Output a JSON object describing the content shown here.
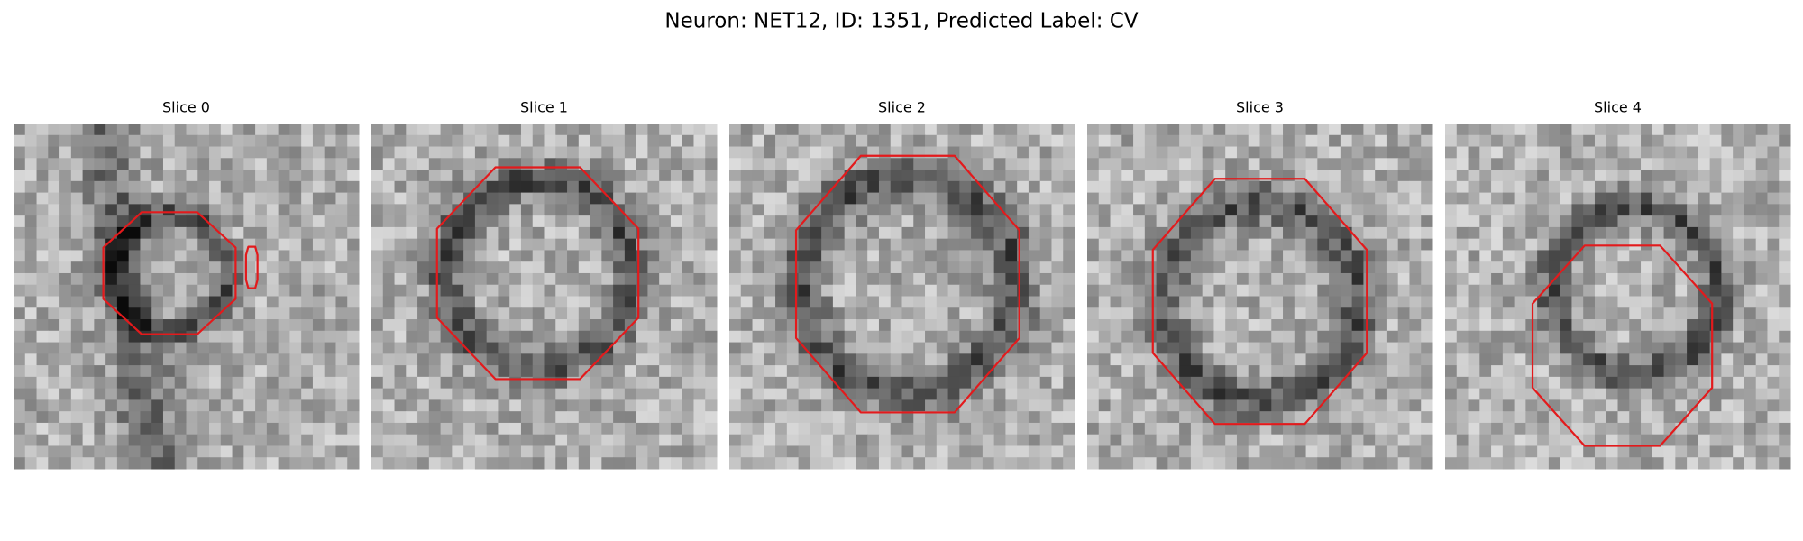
{
  "title": "Neuron: NET12, ID: 1351, Predicted Label: CV",
  "panels": [
    {
      "label": "Slice 0"
    },
    {
      "label": "Slice 1"
    },
    {
      "label": "Slice 2"
    },
    {
      "label": "Slice 3"
    },
    {
      "label": "Slice 4"
    }
  ]
}
